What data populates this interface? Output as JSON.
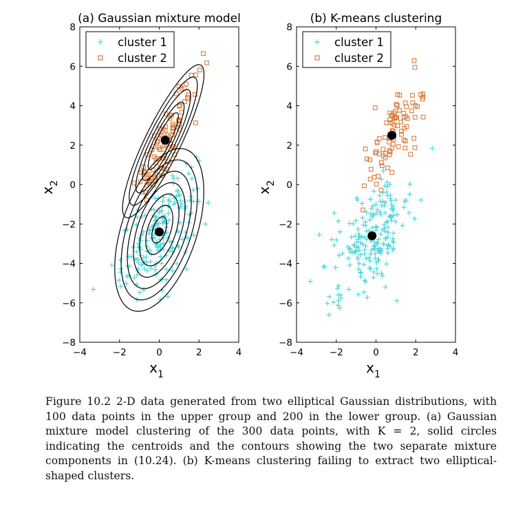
{
  "colors": {
    "cluster1": "#4fd6dc",
    "cluster2": "#d97a3a",
    "centroid": "#000000",
    "contour": "#000000"
  },
  "chart_data": [
    {
      "type": "scatter",
      "title": "(a)  Gaussian mixture model",
      "xlabel": "x1",
      "ylabel": "x2",
      "xlim": [
        -4,
        4
      ],
      "ylim": [
        -8,
        8
      ],
      "xticks": [
        -4,
        -2,
        0,
        2,
        4
      ],
      "yticks": [
        -8,
        -6,
        -4,
        -2,
        0,
        2,
        4,
        6,
        8
      ],
      "legend": {
        "placement": "top-left",
        "entries": [
          "cluster 1",
          "cluster 2"
        ]
      },
      "grid": false,
      "centroids": [
        [
          0.3,
          2.25
        ],
        [
          0.0,
          -2.4
        ]
      ],
      "contours": [
        {
          "center": [
            0.2,
            2.2
          ],
          "angle_deg": 64,
          "rx": [
            4.3,
            3.6,
            2.9,
            2.2,
            1.6
          ],
          "ry": [
            0.9,
            0.75,
            0.6,
            0.46,
            0.33
          ]
        },
        {
          "center": [
            0.0,
            -2.3
          ],
          "angle_deg": 72,
          "rx": [
            4.3,
            3.7,
            3.1,
            2.5,
            1.9,
            1.3,
            0.7
          ],
          "ry": [
            1.9,
            1.62,
            1.36,
            1.1,
            0.84,
            0.58,
            0.32
          ]
        }
      ],
      "series": [
        {
          "name": "cluster 1",
          "marker": "plus",
          "clusters": [
            {
              "n": 205,
              "mean": [
                0.0,
                -2.4
              ],
              "sd": [
                0.95,
                1.55
              ],
              "r": 0.62
            }
          ]
        },
        {
          "name": "cluster 2",
          "marker": "square",
          "clusters": [
            {
              "n": 95,
              "mean": [
                0.35,
                2.3
              ],
              "sd": [
                0.8,
                1.55
              ],
              "r": 0.88
            }
          ]
        }
      ]
    },
    {
      "type": "scatter",
      "title": "(b)  K-means clustering",
      "xlabel": "x1",
      "ylabel": "x2",
      "xlim": [
        -4,
        4
      ],
      "ylim": [
        -8,
        8
      ],
      "xticks": [
        -4,
        -2,
        0,
        2,
        4
      ],
      "yticks": [
        -8,
        -6,
        -4,
        -2,
        0,
        2,
        4,
        6,
        8
      ],
      "legend": {
        "placement": "top-left",
        "entries": [
          "cluster 1",
          "cluster 2"
        ]
      },
      "grid": false,
      "centroids": [
        [
          0.8,
          2.5
        ],
        [
          -0.2,
          -2.6
        ]
      ],
      "series": [
        {
          "name": "cluster 1",
          "marker": "plus",
          "clusters": [
            {
              "n": 210,
              "mean": [
                -0.2,
                -2.6
              ],
              "sd": [
                1.0,
                1.45
              ],
              "r": 0.55
            }
          ]
        },
        {
          "name": "cluster 2",
          "marker": "square",
          "clusters": [
            {
              "n": 90,
              "mean": [
                0.8,
                2.6
              ],
              "sd": [
                0.75,
                1.4
              ],
              "r": 0.7
            }
          ]
        }
      ]
    }
  ],
  "caption": {
    "label": "Figure 10.2",
    "text": "2-D data generated from two elliptical Gaussian distributions, with 100 data points in the upper group and 200 in the lower group. (a) Gaussian mixture model clustering of the 300 data points, with K = 2, solid circles indicating the centroids and the contours showing the two separate mixture components in (10.24). (b) K-means clustering failing to extract two elliptical-shaped clusters."
  }
}
